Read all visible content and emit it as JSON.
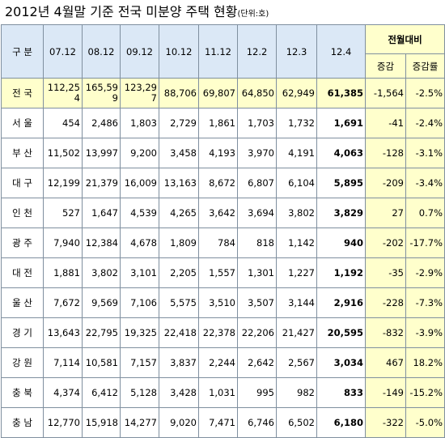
{
  "header": {
    "title": "2012년 4월말 기준 전국 미분양 주택 현황",
    "unit": "(단위:호)"
  },
  "table": {
    "columns": [
      "구  분",
      "07.12",
      "08.12",
      "09.12",
      "10.12",
      "11.12",
      "12.2",
      "12.3",
      "12.4"
    ],
    "change_header": "전월대비",
    "change_columns": [
      "증감",
      "증감률"
    ],
    "rows": [
      [
        "전 국",
        "112,254",
        "165,599",
        "123,297",
        "88,706",
        "69,807",
        "64,850",
        "62,949",
        "61,385",
        "-1,564",
        "-2.5%"
      ],
      [
        "서 울",
        "454",
        "2,486",
        "1,803",
        "2,729",
        "1,861",
        "1,703",
        "1,732",
        "1,691",
        "-41",
        "-2.4%"
      ],
      [
        "부 산",
        "11,502",
        "13,997",
        "9,200",
        "3,458",
        "4,193",
        "3,970",
        "4,191",
        "4,063",
        "-128",
        "-3.1%"
      ],
      [
        "대 구",
        "12,199",
        "21,379",
        "16,009",
        "13,163",
        "8,672",
        "6,807",
        "6,104",
        "5,895",
        "-209",
        "-3.4%"
      ],
      [
        "인 천",
        "527",
        "1,647",
        "4,539",
        "4,265",
        "3,642",
        "3,694",
        "3,802",
        "3,829",
        "27",
        "0.7%"
      ],
      [
        "광 주",
        "7,940",
        "12,384",
        "4,678",
        "1,809",
        "784",
        "818",
        "1,142",
        "940",
        "-202",
        "-17.7%"
      ],
      [
        "대 전",
        "1,881",
        "3,802",
        "3,101",
        "2,205",
        "1,557",
        "1,301",
        "1,227",
        "1,192",
        "-35",
        "-2.9%"
      ],
      [
        "울 산",
        "7,672",
        "9,569",
        "7,106",
        "5,575",
        "3,510",
        "3,507",
        "3,144",
        "2,916",
        "-228",
        "-7.3%"
      ],
      [
        "경 기",
        "13,643",
        "22,795",
        "19,325",
        "22,418",
        "22,378",
        "22,206",
        "21,427",
        "20,595",
        "-832",
        "-3.9%"
      ],
      [
        "강 원",
        "7,114",
        "10,581",
        "7,157",
        "3,837",
        "2,244",
        "2,642",
        "2,567",
        "3,034",
        "467",
        "18.2%"
      ],
      [
        "충 북",
        "4,374",
        "6,412",
        "5,128",
        "3,428",
        "1,031",
        "995",
        "982",
        "833",
        "-149",
        "-15.2%"
      ],
      [
        "충 남",
        "12,770",
        "15,918",
        "14,277",
        "9,020",
        "7,471",
        "6,746",
        "6,502",
        "6,180",
        "-322",
        "-5.0%"
      ]
    ]
  }
}
